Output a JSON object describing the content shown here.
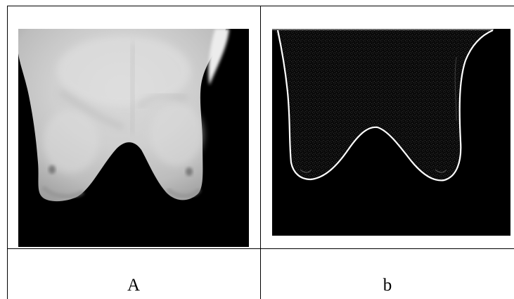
{
  "panels": [
    {
      "id": "A",
      "label": "A",
      "description_kind": "thermal grayscale image",
      "background_color": "#000000"
    },
    {
      "id": "b",
      "label": "b",
      "description_kind": "edge-detected outline image",
      "background_color": "#000000",
      "edge_color": "#ffffff"
    }
  ],
  "colors": {
    "grid_line": "#000000",
    "page_background": "#ffffff",
    "caption_text": "#000000"
  }
}
